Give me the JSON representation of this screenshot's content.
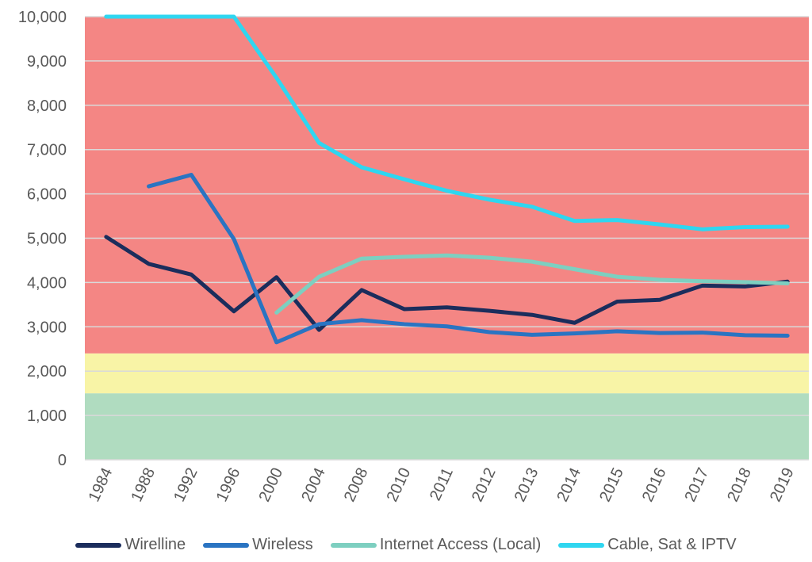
{
  "chart_data": {
    "type": "line",
    "categories": [
      "1984",
      "1988",
      "1992",
      "1996",
      "2000",
      "2004",
      "2008",
      "2010",
      "2011",
      "2012",
      "2013",
      "2014",
      "2015",
      "2016",
      "2017",
      "2018",
      "2019"
    ],
    "ylim": [
      0,
      10000
    ],
    "yticks": [
      0,
      1000,
      2000,
      3000,
      4000,
      5000,
      6000,
      7000,
      8000,
      9000,
      10000
    ],
    "ytick_labels": [
      "0",
      "1,000",
      "2,000",
      "3,000",
      "4,000",
      "5,000",
      "6,000",
      "7,000",
      "8,000",
      "9,000",
      "10,000"
    ],
    "grid": true,
    "legend_position": "bottom",
    "bands": [
      {
        "from": 0,
        "to": 1500,
        "color": "#b0dcc0"
      },
      {
        "from": 1500,
        "to": 2400,
        "color": "#f8f4a6"
      },
      {
        "from": 2400,
        "to": 10000,
        "color": "#f48684"
      }
    ],
    "series": [
      {
        "name": "Wirelline",
        "color": "#1b2d5c",
        "values": [
          5030,
          4420,
          4180,
          3350,
          4120,
          2930,
          3830,
          3400,
          3440,
          3360,
          3270,
          3090,
          3570,
          3610,
          3930,
          3910,
          4020
        ]
      },
      {
        "name": "Wireless",
        "color": "#2a74c2",
        "values": [
          null,
          6170,
          6430,
          4980,
          2650,
          3060,
          3150,
          3060,
          3010,
          2880,
          2820,
          2850,
          2900,
          2860,
          2870,
          2810,
          2800
        ]
      },
      {
        "name": "Internet Access (Local)",
        "color": "#7dcfc0",
        "values": [
          null,
          null,
          null,
          null,
          3320,
          4130,
          4540,
          4580,
          4610,
          4560,
          4470,
          4300,
          4130,
          4060,
          4030,
          4010,
          3980
        ]
      },
      {
        "name": "Cable, Sat & IPTV",
        "color": "#2fd6f0",
        "values": [
          10000,
          10000,
          10000,
          10000,
          8620,
          7150,
          6600,
          6330,
          6070,
          5870,
          5710,
          5390,
          5410,
          5310,
          5200,
          5250,
          5260
        ]
      }
    ]
  }
}
